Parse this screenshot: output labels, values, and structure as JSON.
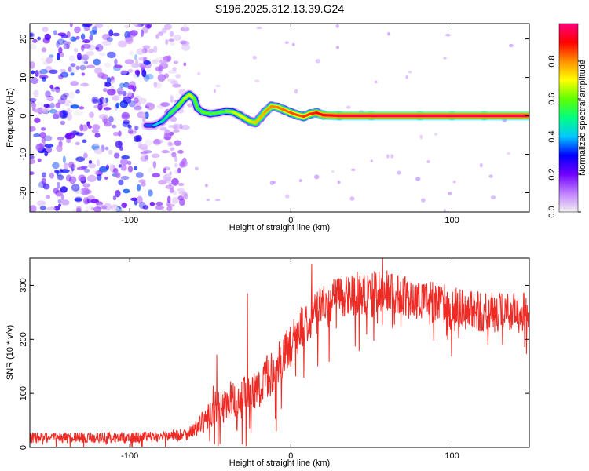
{
  "title": "S196.2025.312.13.39.G24",
  "chart_data": [
    {
      "type": "heatmap",
      "title": "S196.2025.312.13.39.G24",
      "xlabel": "Height of straight line (km)",
      "ylabel": "Frequency (Hz)",
      "xlim": [
        -162,
        148
      ],
      "ylim": [
        -25,
        24
      ],
      "xticks": [
        -100,
        0,
        100
      ],
      "yticks": [
        -20,
        -10,
        0,
        10,
        20
      ],
      "xtick_labels": [
        "-100",
        "0",
        "100"
      ],
      "ytick_labels": [
        "-20",
        "-10",
        "0",
        "10",
        "20"
      ],
      "colorbar": {
        "label": "Normalized spectral amplitude",
        "range": [
          0.0,
          1.0
        ],
        "ticks": [
          0.0,
          0.2,
          0.4,
          0.6,
          0.8
        ],
        "tick_labels": [
          "0.0",
          "0.2",
          "0.4",
          "0.6",
          "0.8"
        ],
        "colors": [
          "#f0f0f0",
          "#c080ff",
          "#7000ff",
          "#0000ff",
          "#00c8ff",
          "#00ff80",
          "#60ff00",
          "#ffff00",
          "#ff9000",
          "#ff0000",
          "#ff0080"
        ]
      },
      "noise_region_km": [
        -162,
        -75
      ],
      "noise_amplitude": 0.35,
      "trace": {
        "x": [
          -90,
          -85,
          -80,
          -75,
          -70,
          -66,
          -63,
          -60,
          -58,
          -55,
          -50,
          -45,
          -40,
          -36,
          -32,
          -28,
          -25,
          -22,
          -19,
          -16,
          -12,
          -8,
          -4,
          0,
          4,
          8,
          12,
          16,
          20,
          30,
          50,
          80,
          100,
          120,
          148
        ],
        "y": [
          -2.5,
          -2.5,
          -1.5,
          0.5,
          2.5,
          4.5,
          5.5,
          4.5,
          2.0,
          1.0,
          0.5,
          0.8,
          1.2,
          1.0,
          0.2,
          -0.8,
          -1.5,
          -1.8,
          -0.5,
          1.0,
          2.5,
          2.2,
          1.5,
          0.8,
          0.2,
          -0.2,
          0.5,
          0.8,
          0.2,
          0.0,
          0.0,
          0.0,
          0.0,
          0.0,
          0.0
        ],
        "amplitude": [
          0.3,
          0.4,
          0.45,
          0.55,
          0.6,
          0.65,
          0.7,
          0.65,
          0.55,
          0.6,
          0.6,
          0.55,
          0.6,
          0.65,
          0.7,
          0.7,
          0.72,
          0.75,
          0.75,
          0.78,
          0.8,
          0.82,
          0.82,
          0.85,
          0.85,
          0.85,
          0.88,
          0.88,
          0.92,
          0.95,
          0.97,
          0.97,
          0.97,
          0.97,
          0.97
        ]
      }
    },
    {
      "type": "line",
      "xlabel": "Height of straight line (km)",
      "ylabel": "SNR (10 * v/v)",
      "xlim": [
        -162,
        148
      ],
      "ylim": [
        0,
        350
      ],
      "xticks": [
        -100,
        0,
        100
      ],
      "yticks": [
        0,
        100,
        200,
        300
      ],
      "xtick_labels": [
        "-100",
        "0",
        "100"
      ],
      "ytick_labels": [
        "0",
        "100",
        "200",
        "300"
      ],
      "color": "#ee2a24",
      "series": [
        {
          "name": "SNR",
          "envelope": {
            "x": [
              -162,
              -140,
              -120,
              -100,
              -80,
              -65,
              -60,
              -55,
              -50,
              -48,
              -46,
              -44,
              -40,
              -36,
              -34,
              -32,
              -30,
              -25,
              -20,
              -15,
              -10,
              -5,
              0,
              5,
              10,
              15,
              20,
              25,
              30,
              40,
              50,
              60,
              70,
              80,
              90,
              100,
              110,
              120,
              130,
              140,
              148
            ],
            "mean": [
              18,
              18,
              18,
              18,
              20,
              25,
              32,
              45,
              60,
              80,
              70,
              75,
              80,
              95,
              75,
              85,
              95,
              100,
              110,
              130,
              145,
              165,
              190,
              215,
              235,
              250,
              265,
              272,
              280,
              285,
              288,
              290,
              280,
              275,
              268,
              260,
              255,
              250,
              250,
              250,
              248
            ],
            "spread": [
              10,
              10,
              10,
              10,
              10,
              12,
              14,
              20,
              28,
              40,
              35,
              30,
              30,
              35,
              30,
              35,
              35,
              35,
              40,
              40,
              40,
              40,
              40,
              40,
              40,
              40,
              40,
              40,
              40,
              40,
              40,
              38,
              38,
              38,
              38,
              38,
              38,
              38,
              38,
              38,
              38
            ]
          },
          "spikes": [
            {
              "x": -46,
              "y": 172
            },
            {
              "x": -27,
              "y": 285
            },
            {
              "x": -9,
              "y": 30
            },
            {
              "x": 57,
              "y": 350
            },
            {
              "x": 13,
              "y": 340
            }
          ]
        }
      ]
    }
  ]
}
